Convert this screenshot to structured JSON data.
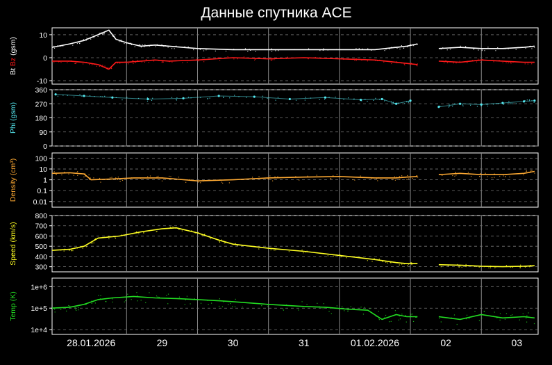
{
  "title": "Данные спутника ACE",
  "x_axis": {
    "ticks": [
      "28.01.2026",
      "29",
      "30",
      "31",
      "01.02.2026",
      "02",
      "03"
    ],
    "range": [
      -0.55,
      6.3
    ]
  },
  "colors": {
    "bt": "#ffffff",
    "bz": "#ff1a1a",
    "phi": "#55e8f0",
    "density": "#ffaa33",
    "speed": "#ffff22",
    "temp": "#22dd22"
  },
  "chart_data": [
    {
      "type": "line",
      "ylabel_parts": [
        {
          "text": "Bt",
          "color": "#ffffff"
        },
        {
          "text": " Bz",
          "color": "#ff1a1a"
        },
        {
          "text": " (gsm)",
          "color": "#ffffff"
        }
      ],
      "yticks": [
        "10",
        "0",
        "-10"
      ],
      "ytick_values": [
        10,
        0,
        -10
      ],
      "ylim": [
        -11.5,
        13
      ],
      "scale": "linear",
      "series": [
        {
          "key": "bt",
          "x": [
            -0.55,
            -0.3,
            -0.1,
            0.1,
            0.25,
            0.35,
            0.5,
            0.7,
            0.9,
            1.1,
            1.5,
            2.0,
            2.5,
            3.0,
            3.5,
            4.0,
            4.3,
            4.45,
            4.6
          ],
          "y": [
            4.5,
            6,
            7.5,
            10,
            12,
            8,
            6.5,
            5,
            5.5,
            5,
            4,
            3.5,
            3.5,
            3.5,
            3.5,
            3.5,
            4.5,
            5,
            6
          ]
        },
        {
          "key": "bz",
          "x": [
            -0.55,
            -0.3,
            -0.1,
            0.1,
            0.25,
            0.35,
            0.5,
            0.7,
            0.9,
            1.1,
            1.5,
            2.0,
            2.5,
            3.0,
            3.5,
            4.0,
            4.3,
            4.45,
            4.6
          ],
          "y": [
            -1.5,
            -1.5,
            -2,
            -3,
            -5,
            -2,
            -2,
            -1.5,
            -1,
            -1.5,
            -1,
            0,
            -0.5,
            0,
            -0.5,
            -1,
            -2,
            -2.5,
            -3
          ]
        },
        {
          "key": "bt",
          "x": [
            4.9,
            5.2,
            5.5,
            5.8,
            6.1,
            6.25
          ],
          "y": [
            4,
            4.5,
            4,
            4,
            4.5,
            5
          ]
        },
        {
          "key": "bz",
          "x": [
            4.9,
            5.2,
            5.5,
            5.8,
            6.1,
            6.25
          ],
          "y": [
            -1.5,
            -2,
            -1,
            -1.5,
            -2,
            -2
          ]
        }
      ]
    },
    {
      "type": "scatter",
      "ylabel_parts": [
        {
          "text": "Phi (gsm)",
          "color": "#55e8f0"
        }
      ],
      "yticks": [
        "360",
        "270",
        "180",
        "90",
        "0"
      ],
      "ytick_values": [
        360,
        270,
        180,
        90,
        0
      ],
      "ylim": [
        0,
        360
      ],
      "scale": "linear",
      "series": [
        {
          "key": "phi",
          "x": [
            -0.5,
            -0.1,
            0.3,
            0.8,
            1.3,
            1.8,
            2.3,
            2.8,
            3.3,
            3.8,
            4.1,
            4.3,
            4.5
          ],
          "y": [
            330,
            320,
            310,
            300,
            305,
            320,
            315,
            300,
            310,
            295,
            300,
            270,
            290
          ]
        },
        {
          "key": "phi",
          "x": [
            4.9,
            5.2,
            5.5,
            5.8,
            6.1,
            6.25
          ],
          "y": [
            250,
            270,
            265,
            275,
            285,
            290
          ]
        }
      ]
    },
    {
      "type": "line",
      "ylabel_parts": [
        {
          "text": "Density (cm³)",
          "color": "#ffaa33"
        }
      ],
      "yticks": [
        "100",
        "10",
        "1",
        "0.1",
        "0.01"
      ],
      "ytick_values": [
        100,
        10,
        1,
        0.1,
        0.01
      ],
      "ylim": [
        0.003,
        300
      ],
      "scale": "log",
      "series": [
        {
          "key": "density",
          "x": [
            -0.55,
            -0.3,
            -0.1,
            0.0,
            0.3,
            0.6,
            1.0,
            1.5,
            2.0,
            2.5,
            3.0,
            3.5,
            4.0,
            4.3,
            4.45,
            4.6
          ],
          "y": [
            4,
            4.5,
            3.5,
            1,
            1.2,
            1.5,
            1.5,
            0.8,
            1.0,
            1.5,
            1.8,
            2.0,
            1.5,
            1.5,
            1.8,
            2.0
          ]
        },
        {
          "key": "density",
          "x": [
            4.9,
            5.2,
            5.5,
            5.8,
            6.1,
            6.25
          ],
          "y": [
            3,
            4,
            3,
            3,
            4,
            6
          ]
        }
      ]
    },
    {
      "type": "line",
      "ylabel_parts": [
        {
          "text": "Speed (km/s)",
          "color": "#ffff22"
        }
      ],
      "yticks": [
        "800",
        "700",
        "600",
        "500",
        "400",
        "300"
      ],
      "ytick_values": [
        800,
        700,
        600,
        500,
        400,
        300
      ],
      "ylim": [
        250,
        800
      ],
      "scale": "linear",
      "series": [
        {
          "key": "speed",
          "x": [
            -0.55,
            -0.3,
            -0.1,
            0.1,
            0.4,
            0.7,
            1.0,
            1.2,
            1.5,
            1.8,
            2.0,
            2.5,
            3.0,
            3.5,
            4.0,
            4.3,
            4.45,
            4.6
          ],
          "y": [
            460,
            470,
            500,
            580,
            600,
            640,
            670,
            680,
            630,
            560,
            520,
            480,
            450,
            410,
            370,
            340,
            330,
            330
          ]
        },
        {
          "key": "speed",
          "x": [
            4.9,
            5.2,
            5.5,
            5.8,
            6.1,
            6.25
          ],
          "y": [
            320,
            315,
            305,
            300,
            305,
            310
          ]
        }
      ]
    },
    {
      "type": "line",
      "ylabel_parts": [
        {
          "text": "Temp (K)",
          "color": "#22dd22"
        }
      ],
      "yticks": [
        "1e+6",
        "1e+5",
        "1e+4"
      ],
      "ytick_values": [
        1000000,
        100000,
        10000
      ],
      "ylim": [
        6000,
        2500000
      ],
      "scale": "log",
      "series": [
        {
          "key": "temp",
          "x": [
            -0.55,
            -0.3,
            -0.1,
            0.1,
            0.3,
            0.6,
            0.9,
            1.2,
            1.5,
            1.8,
            2.0,
            2.5,
            3.0,
            3.3,
            3.6,
            3.9,
            4.1,
            4.3,
            4.45,
            4.6
          ],
          "y": [
            100000,
            110000,
            150000,
            250000,
            300000,
            350000,
            300000,
            280000,
            250000,
            220000,
            200000,
            150000,
            120000,
            110000,
            90000,
            80000,
            30000,
            50000,
            40000,
            40000
          ]
        },
        {
          "key": "temp",
          "x": [
            4.9,
            5.2,
            5.5,
            5.8,
            6.1,
            6.25
          ],
          "y": [
            40000,
            30000,
            50000,
            35000,
            40000,
            35000
          ]
        }
      ]
    }
  ]
}
